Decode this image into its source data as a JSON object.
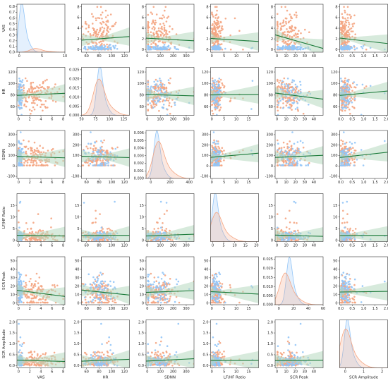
{
  "chart_data": {
    "type": "scatter",
    "subtype": "pairplot",
    "variables": [
      "VAS",
      "HR",
      "SDNN",
      "LF/HF Ratio",
      "SCR Peak",
      "SCR Amplitude"
    ],
    "series_colors": {
      "group_a": "#f4a582",
      "group_b": "#92c5f7"
    },
    "regression_color": "#1b7a3a",
    "ci_color": "#b7d9c0",
    "grid": false,
    "axes": [
      {
        "name": "VAS",
        "xlim": [
          -0.5,
          10
        ],
        "xticks": [
          "0",
          "5",
          "10"
        ],
        "diag_yticks": [
          "0.0",
          "0.1",
          "0.2",
          "0.3",
          "0.4",
          "0.5",
          "0.6",
          "0.7",
          "0.8"
        ],
        "offdiag_ylim": [
          -0.5,
          8.5
        ],
        "offdiag_yticks": [
          "0",
          "2",
          "4",
          "6",
          "8"
        ],
        "col_xlim": [
          -0.3,
          8.3
        ],
        "col_xticks": [
          "0",
          "2",
          "4",
          "6",
          "8"
        ]
      },
      {
        "name": "HR",
        "xlim": [
          50,
          135
        ],
        "xticks": [
          "50",
          "75",
          "100",
          "125"
        ],
        "diag_yticks": [
          "0.000",
          "0.005",
          "0.010",
          "0.015",
          "0.020",
          "0.025"
        ],
        "offdiag_ylim": [
          45,
          128
        ],
        "offdiag_yticks": [
          "60",
          "80",
          "100",
          "120"
        ],
        "col_xlim": [
          52,
          128
        ],
        "col_xticks": [
          "60",
          "80",
          "100",
          "120"
        ]
      },
      {
        "name": "SDNN",
        "xlim": [
          -50,
          450
        ],
        "xticks": [
          "0",
          "200",
          "400"
        ],
        "diag_yticks": [
          "0.000",
          "0.001",
          "0.002",
          "0.003",
          "0.004",
          "0.005",
          "0.006"
        ],
        "offdiag_ylim": [
          -120,
          340
        ],
        "offdiag_yticks": [
          "-100",
          "0",
          "100",
          "200",
          "300"
        ],
        "col_xlim": [
          -10,
          360
        ],
        "col_xticks": [
          "0",
          "100",
          "200",
          "300"
        ]
      },
      {
        "name": "LF/HF Ratio",
        "xlim": [
          -1,
          21
        ],
        "xticks": [
          "0",
          "5",
          "10",
          "15",
          "20"
        ],
        "diag_yticks": [],
        "offdiag_ylim": [
          -0.5,
          20
        ],
        "offdiag_yticks": [
          "0",
          "5",
          "10",
          "15"
        ],
        "col_xlim": [
          -0.5,
          19
        ],
        "col_xticks": [
          "0",
          "5",
          "10",
          "15"
        ]
      },
      {
        "name": "SCR Peak",
        "xlim": [
          -5,
          60
        ],
        "xticks": [
          "0",
          "20",
          "40",
          "60"
        ],
        "diag_yticks": [
          "0.000",
          "0.005",
          "0.010",
          "0.015",
          "0.020",
          "0.025"
        ],
        "offdiag_ylim": [
          -2,
          55
        ],
        "offdiag_yticks": [
          "0",
          "10",
          "20",
          "30",
          "40",
          "50"
        ],
        "col_xlim": [
          -2,
          50
        ],
        "col_xticks": [
          "0",
          "10",
          "20",
          "30",
          "40"
        ]
      },
      {
        "name": "SCR Amplitude",
        "xlim": [
          -0.3,
          2.3
        ],
        "xticks": [
          "0",
          "1",
          "2"
        ],
        "diag_yticks": [],
        "offdiag_ylim": [
          -0.1,
          2.1
        ],
        "offdiag_yticks": [
          "0.0",
          "0.5",
          "1.0",
          "1.5",
          "2.0"
        ],
        "col_xlim": [
          -0.05,
          2.05
        ],
        "col_xticks": [
          "0.0",
          "0.5",
          "1.0",
          "1.5",
          "2.0"
        ]
      }
    ],
    "distributions": [
      {
        "var": "VAS",
        "group_b_peak": [
          0.5,
          0.78
        ],
        "group_a_peak": [
          3.5,
          0.06
        ],
        "ylim": [
          0,
          0.85
        ]
      },
      {
        "var": "HR",
        "group_b_peak": [
          82,
          0.026
        ],
        "group_a_peak": [
          80,
          0.019
        ],
        "ylim": [
          0,
          0.028
        ]
      },
      {
        "var": "SDNN",
        "group_b_peak": [
          60,
          0.0058
        ],
        "group_a_peak": [
          75,
          0.0045
        ],
        "ylim": [
          0,
          0.0065
        ]
      },
      {
        "var": "LF/HF Ratio",
        "group_b_peak": [
          1.0,
          1.0
        ],
        "group_a_peak": [
          1.5,
          0.6
        ],
        "ylim": [
          0,
          1.1
        ]
      },
      {
        "var": "SCR Peak",
        "group_b_peak": [
          14,
          0.024
        ],
        "group_a_peak": [
          8,
          0.016
        ],
        "ylim": [
          0,
          0.027
        ]
      },
      {
        "var": "SCR Amplitude",
        "group_b_peak": [
          0.1,
          1.0
        ],
        "group_a_peak": [
          0.0,
          0.8
        ],
        "ylim": [
          0,
          1.1
        ]
      }
    ]
  }
}
